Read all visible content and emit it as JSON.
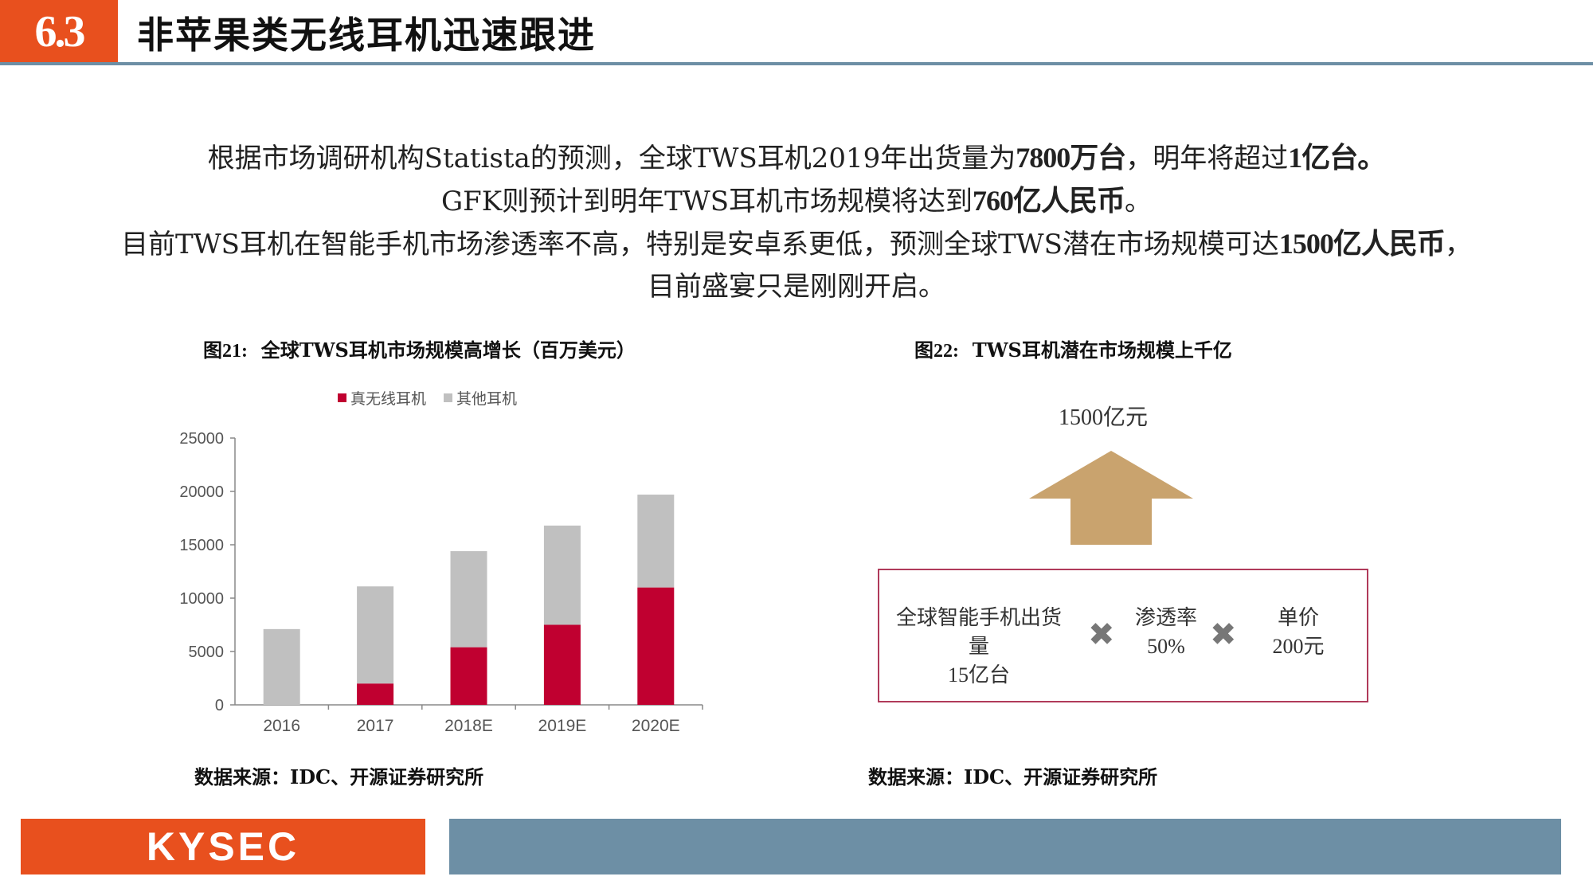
{
  "header": {
    "section_number": "6.3",
    "title": "非苹果类无线耳机迅速跟进"
  },
  "body": {
    "line1_a": "根据市场调研机构Statista的预测，全球TWS耳机2019年出货量为",
    "line1_b": "7800万台",
    "line1_c": "，明年将超过",
    "line1_d": "1亿台",
    "line1_e": "。",
    "line2_a": "GFK则预计到明年TWS耳机市场规模将达到",
    "line2_b": "760亿人民币",
    "line2_c": "。",
    "line3_a": "目前TWS耳机在智能手机市场渗透率不高，特别是安卓系更低，预测全球TWS潜在市场规模可达",
    "line3_b": "1500亿人民币",
    "line3_c": "，目前盛宴只是刚刚开启。"
  },
  "figure21": {
    "label": "图21:",
    "caption": "全球TWS耳机市场规模高增长（百万美元）",
    "source": "数据来源：IDC、开源证券研究所"
  },
  "figure22": {
    "label": "图22:",
    "caption": "TWS耳机潜在市场规模上千亿",
    "source": "数据来源：IDC、开源证券研究所",
    "arrow_label": "1500亿元",
    "factor1_line1": "全球智能手机出货量",
    "factor1_line2": "15亿台",
    "times1": "✖",
    "factor2_line1": "渗透率",
    "factor2_line2": "50%",
    "times2": "✖",
    "factor3_line1": "单价",
    "factor3_line2": "200元",
    "arrow_color": "#c9a36e",
    "box_border_color": "#b03a5a"
  },
  "chart_data": {
    "type": "bar",
    "stacked": true,
    "categories": [
      "2016",
      "2017",
      "2018E",
      "2019E",
      "2020E"
    ],
    "series": [
      {
        "name": "真无线耳机",
        "color": "#c00030",
        "values": [
          0,
          2000,
          5400,
          7500,
          11000
        ]
      },
      {
        "name": "其他耳机",
        "color": "#c0c0c0",
        "values": [
          7100,
          9100,
          9000,
          9300,
          8700
        ]
      }
    ],
    "y_ticks": [
      "0",
      "5000",
      "10000",
      "15000",
      "20000",
      "25000"
    ],
    "ylim": [
      0,
      25000
    ],
    "legend_position": "top"
  },
  "footer": {
    "logo": "KYSEC"
  },
  "colors": {
    "accent": "#e8501e",
    "steel": "#6d8fa5"
  }
}
